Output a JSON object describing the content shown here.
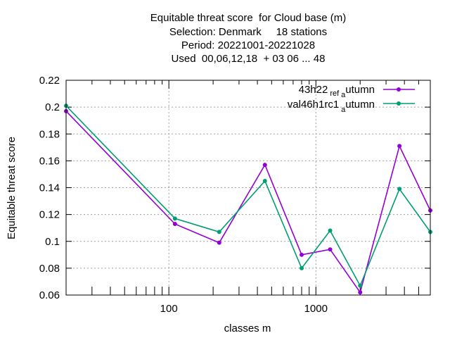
{
  "chart_data": {
    "type": "line",
    "title_lines": [
      "Equitable threat score  for Cloud base (m)",
      "Selection: Denmark     18 stations",
      "Period: 20221001-20221028",
      "Used  00,06,12,18  + 03 06 ... 48"
    ],
    "xlabel": "classes m",
    "ylabel": "Equitable threat score",
    "x_scale": "log",
    "xlim": [
      20,
      6000
    ],
    "ylim": [
      0.06,
      0.22
    ],
    "y_ticks": [
      "0.06",
      "0.08",
      "0.1",
      "0.12",
      "0.14",
      "0.16",
      "0.18",
      "0.2",
      "0.22"
    ],
    "x_ticks": [
      "100",
      "1000"
    ],
    "grid": true,
    "legend_position": "top-right",
    "x": [
      20,
      110,
      220,
      450,
      800,
      1250,
      2000,
      3700,
      6000
    ],
    "series": [
      {
        "name_main": "43h22",
        "name_sub": "ref",
        "name_mid": "a",
        "name_tail": "utumn",
        "color": "#9400d3",
        "values": [
          0.197,
          0.113,
          0.099,
          0.157,
          0.09,
          0.094,
          0.062,
          0.171,
          0.123
        ]
      },
      {
        "name_main": "val46h1rc1",
        "name_sub": "",
        "name_mid": "a",
        "name_tail": "utumn",
        "color": "#009e73",
        "values": [
          0.201,
          0.117,
          0.107,
          0.145,
          0.08,
          0.108,
          0.067,
          0.139,
          0.107
        ]
      }
    ]
  }
}
